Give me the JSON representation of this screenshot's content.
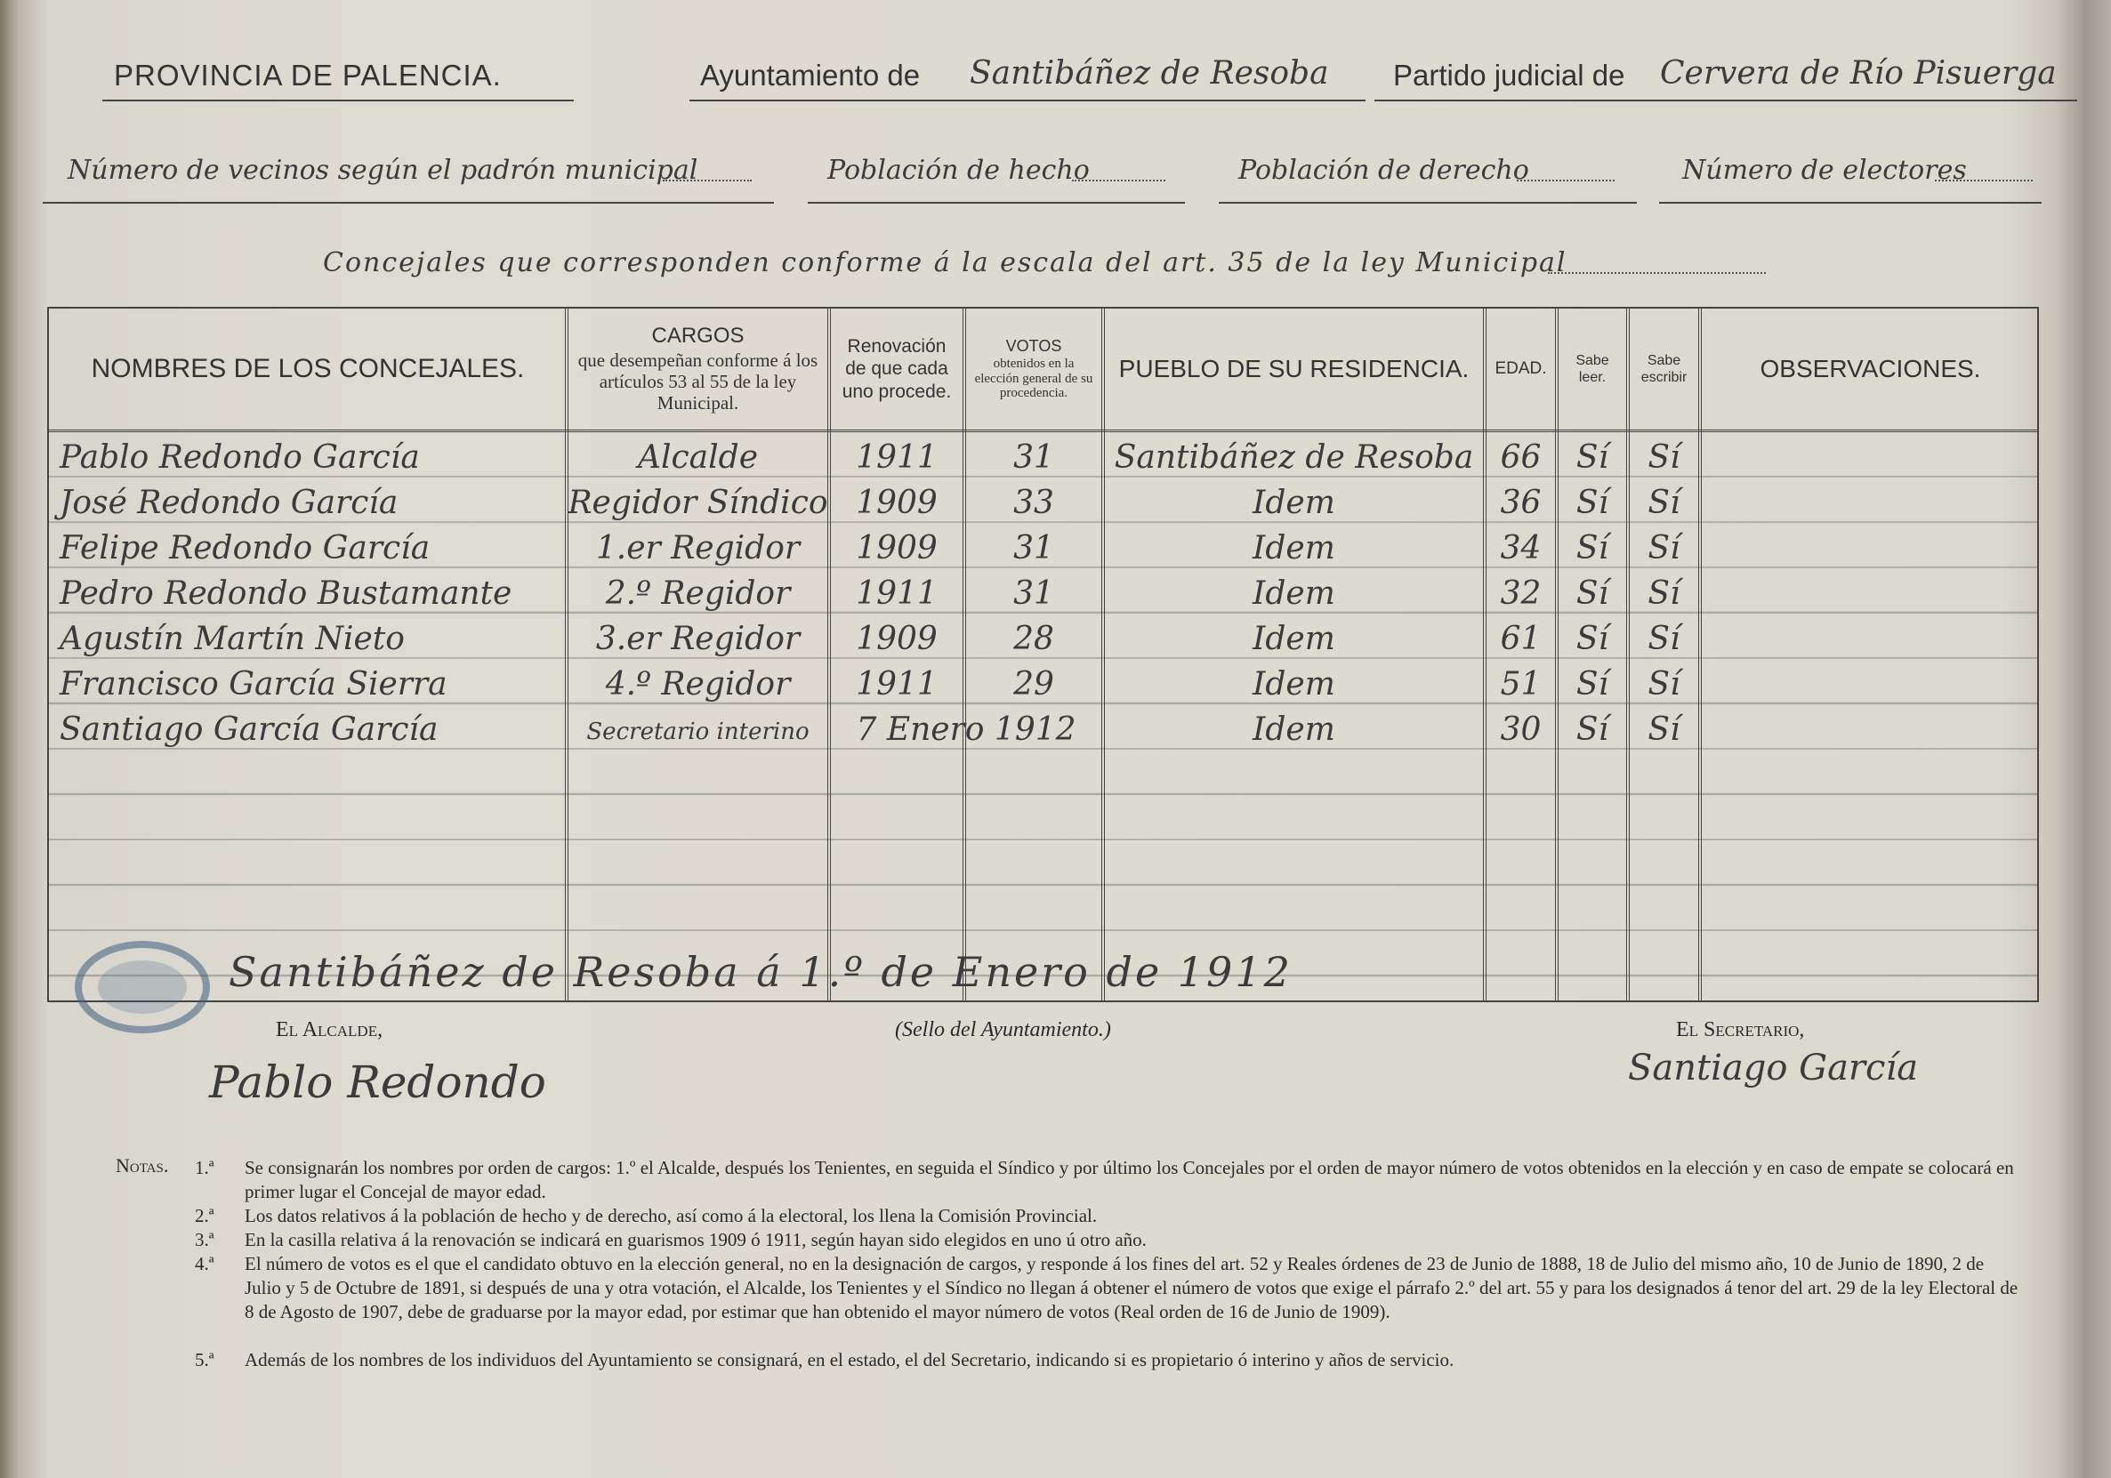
{
  "header": {
    "province": "PROVINCIA DE PALENCIA.",
    "ayuntamiento_label": "Ayuntamiento de",
    "ayuntamiento": "Santibáñez de Resoba",
    "partido_label": "Partido judicial de",
    "partido": "Cervera de Río Pisuerga"
  },
  "fields": [
    "Número de vecinos según el padrón municipal",
    "Población de hecho",
    "Población de derecho",
    "Número de electores"
  ],
  "concejales_line": "Concejales que corresponden conforme á la escala del art. 35 de la ley Municipal",
  "table": {
    "headers": [
      "NOMBRES DE LOS CONCEJALES.",
      "CARGOS",
      "Renovación de que cada uno procede.",
      "VOTOS",
      "PUEBLO DE SU RESIDENCIA.",
      "EDAD.",
      "Sabe leer.",
      "Sabe escribir",
      "OBSERVACIONES."
    ],
    "cargos_note": "que desempeñan conforme á los artículos 53 al 55 de la ley Municipal.",
    "votos_note": "obtenidos en la elección general de su procedencia.",
    "rows": [
      [
        "Pablo Redondo García",
        "Alcalde",
        "1911",
        "31",
        "Santibáñez de Resoba",
        "66",
        "Sí",
        "Sí"
      ],
      [
        "José Redondo García",
        "Regidor Síndico",
        "1909",
        "33",
        "Idem",
        "36",
        "Sí",
        "Sí"
      ],
      [
        "Felipe Redondo García",
        "1.er Regidor",
        "1909",
        "31",
        "Idem",
        "34",
        "Sí",
        "Sí"
      ],
      [
        "Pedro Redondo Bustamante",
        "2.º Regidor",
        "1911",
        "31",
        "Idem",
        "32",
        "Sí",
        "Sí"
      ],
      [
        "Agustín Martín Nieto",
        "3.er Regidor",
        "1909",
        "28",
        "Idem",
        "61",
        "Sí",
        "Sí"
      ],
      [
        "Francisco García Sierra",
        "4.º Regidor",
        "1911",
        "29",
        "Idem",
        "51",
        "Sí",
        "Sí"
      ],
      [
        "Santiago García García",
        "Secretario interino",
        "7 Enero 1912",
        null,
        "Idem",
        "30",
        "Sí",
        "Sí"
      ]
    ]
  },
  "footer": {
    "place_date": "Santibáñez de Resoba á 1.º de Enero de 1912",
    "alcalde_label": "El Alcalde,",
    "sello": "(Sello del Ayuntamiento.)",
    "secretario_label": "El Secretario,",
    "alcalde_signature": "Pablo Redondo",
    "secretario_signature": "Santiago García"
  },
  "notes": {
    "label": "Notas.",
    "items": [
      {
        "num": "1.ª",
        "text": "Se consignarán los nombres por orden de cargos: 1.º el Alcalde, después los Tenientes, en seguida el Síndico y por último los Concejales por el orden de mayor número de votos obtenidos en la elección y en caso de empate se colocará en primer lugar el Concejal de mayor edad."
      },
      {
        "num": "2.ª",
        "text": "Los datos relativos á la población de hecho y de derecho, así como á la electoral, los llena la Comisión Provincial."
      },
      {
        "num": "3.ª",
        "text": "En la casilla relativa á la renovación se indicará en guarismos 1909 ó 1911, según hayan sido elegidos en uno ú otro año."
      },
      {
        "num": "4.ª",
        "text": "El número de votos es el que el candidato obtuvo en la elección general, no en la designación de cargos, y responde á los fines del art. 52 y Reales órdenes de 23 de Junio de 1888, 18 de Julio del mismo año, 10 de Junio de 1890, 2 de Julio y 5 de Octubre de 1891, si después de una y otra votación, el Alcalde, los Tenientes y el Síndico no llegan á obtener el número de votos que exige el párrafo 2.º del art. 55 y para los designados á tenor del art. 29 de la ley Electoral de 8 de Agosto de 1907, debe de graduarse por la mayor edad, por estimar que han obtenido el mayor número de votos (Real orden de 16 de Junio de 1909)."
      },
      {
        "num": "5.ª",
        "text": "Además de los nombres de los individuos del Ayuntamiento se consignará, en el estado, el del Secretario, indicando si es propietario ó interino y años de servicio."
      }
    ]
  }
}
